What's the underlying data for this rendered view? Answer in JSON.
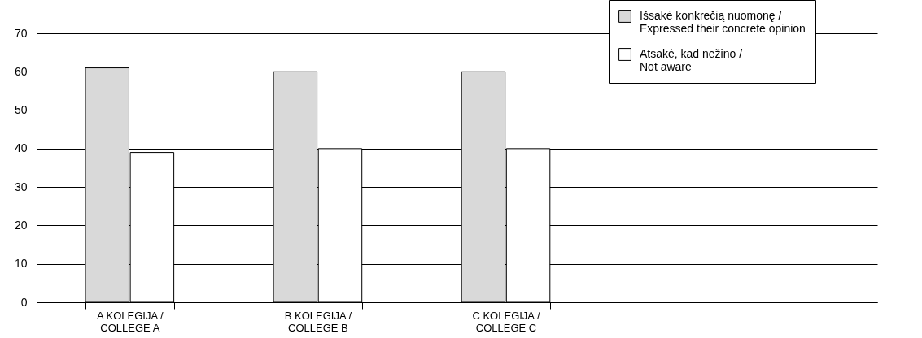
{
  "chart_data": {
    "type": "bar",
    "categories": [
      "A KOLEGIJA /\nCOLLEGE A",
      "B KOLEGIJA /\nCOLLEGE B",
      "C KOLEGIJA /\nCOLLEGE C"
    ],
    "series": [
      {
        "name": "Išsakė konkrečią nuomonę /\nExpressed their concrete opinion",
        "color": "#d9d9d9",
        "values": [
          61,
          60,
          60
        ]
      },
      {
        "name": "Atsakė, kad nežino /\nNot aware",
        "color": "#ffffff",
        "values": [
          39,
          40,
          40
        ]
      }
    ],
    "ylim": [
      0,
      70
    ],
    "yticks": [
      0,
      10,
      20,
      30,
      40,
      50,
      60,
      70
    ],
    "grid": "y",
    "legend": "top right"
  }
}
